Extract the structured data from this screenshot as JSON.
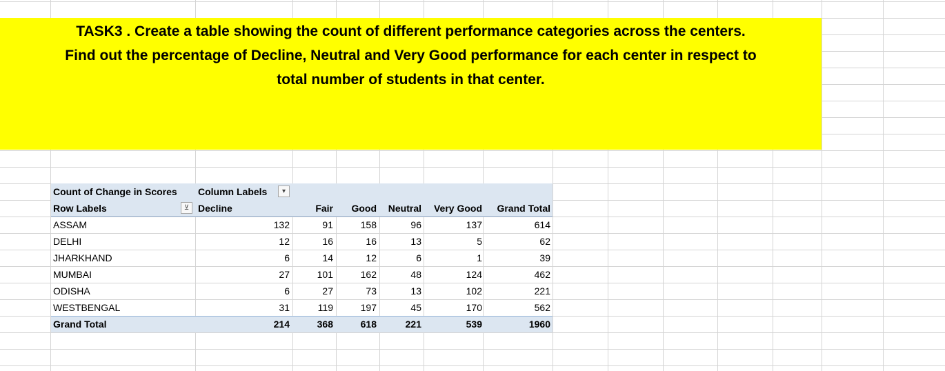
{
  "task": {
    "line1": "TASK3 . Create a table showing the count of different performance categories across the centers.",
    "line2": "Find out the percentage of Decline, Neutral and Very Good performance  for each center in respect to",
    "line3": "total number of students in that center."
  },
  "pivot": {
    "title": "Count of Change in Scores",
    "column_labels": "Column Labels",
    "row_labels": "Row Labels",
    "columns": [
      "Decline",
      "Fair",
      "Good",
      "Neutral",
      "Very Good",
      "Grand Total"
    ],
    "rows": [
      {
        "label": "ASSAM",
        "values": [
          "132",
          "91",
          "158",
          "96",
          "137",
          "614"
        ]
      },
      {
        "label": "DELHI",
        "values": [
          "12",
          "16",
          "16",
          "13",
          "5",
          "62"
        ]
      },
      {
        "label": "JHARKHAND",
        "values": [
          "6",
          "14",
          "12",
          "6",
          "1",
          "39"
        ]
      },
      {
        "label": "MUMBAI",
        "values": [
          "27",
          "101",
          "162",
          "48",
          "124",
          "462"
        ]
      },
      {
        "label": "ODISHA",
        "values": [
          "6",
          "27",
          "73",
          "13",
          "102",
          "221"
        ]
      },
      {
        "label": "WESTBENGAL",
        "values": [
          "31",
          "119",
          "197",
          "45",
          "170",
          "562"
        ]
      }
    ],
    "grand_total": {
      "label": "Grand Total",
      "values": [
        "214",
        "368",
        "618",
        "221",
        "539",
        "1960"
      ]
    },
    "filter_icon": "filter-dropdown-icon",
    "dropdown_icon": "chevron-down-icon"
  },
  "colors": {
    "banner": "#ffff00",
    "pivot_header": "#dce6f1",
    "pivot_border": "#95b3d7",
    "gridline": "#d4d4d4"
  }
}
